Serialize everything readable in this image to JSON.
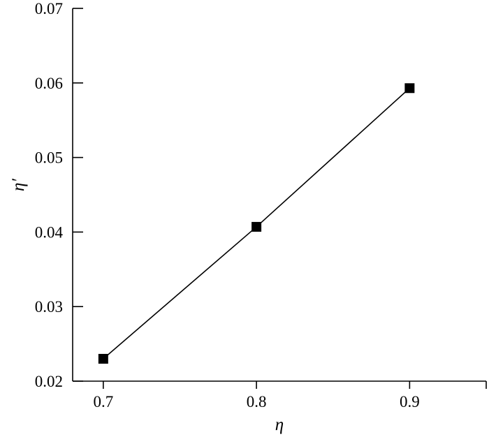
{
  "chart_data": {
    "type": "line",
    "title": "",
    "xlabel": "η",
    "ylabel": "η′",
    "xlim": [
      0.68,
      0.95
    ],
    "ylim": [
      0.02,
      0.07
    ],
    "x_ticks": [
      "0.7",
      "0.8",
      "0.9"
    ],
    "y_ticks": [
      "0.02",
      "0.03",
      "0.04",
      "0.05",
      "0.06",
      "0.07"
    ],
    "grid": false,
    "series": [
      {
        "x": [
          0.7,
          0.8,
          0.9
        ],
        "y": [
          0.023,
          0.0407,
          0.0593
        ],
        "marker": "square",
        "color": "#000000"
      }
    ]
  }
}
